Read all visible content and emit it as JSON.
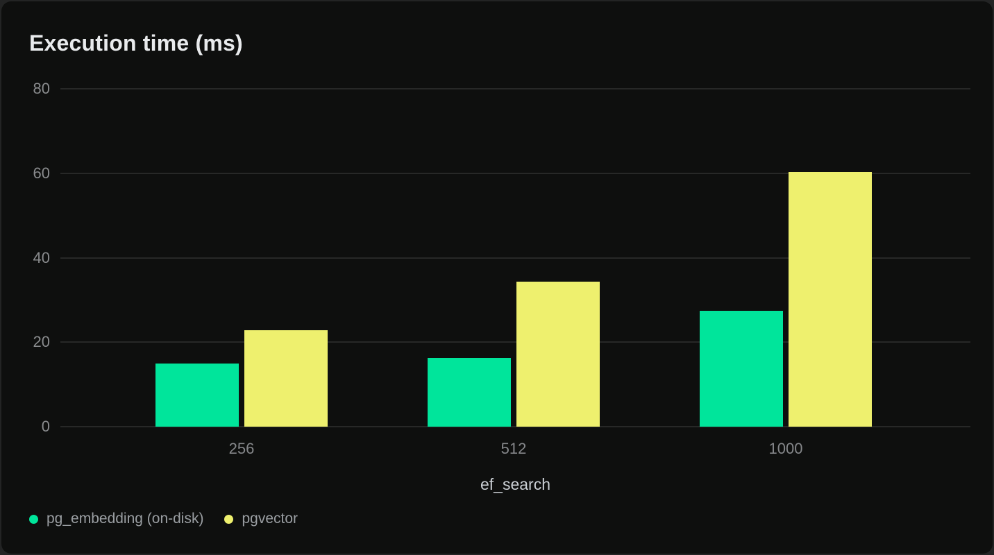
{
  "card": {
    "title": "Execution time (ms)"
  },
  "chart_data": {
    "type": "bar",
    "title": "Execution time (ms)",
    "xlabel": "ef_search",
    "ylabel": "",
    "categories": [
      "256",
      "512",
      "1000"
    ],
    "series": [
      {
        "name": "pg_embedding (on-disk)",
        "color": "#00e59b",
        "values": [
          15.0,
          16.3,
          27.4
        ]
      },
      {
        "name": "pgvector",
        "color": "#eef06e",
        "values": [
          22.8,
          34.3,
          60.3
        ]
      }
    ],
    "ylim": [
      0,
      80
    ],
    "yticks": [
      0,
      20,
      40,
      60,
      80
    ],
    "grid": "horizontal-only",
    "legend_position": "bottom-left",
    "background": "#0e0f0e",
    "gridline_color": "#272827",
    "tick_label_color": "#8a8c8e",
    "axis_label_color": "#c9ced3",
    "title_color": "#e9ebed",
    "legend_text_color": "#9a9ea2"
  }
}
